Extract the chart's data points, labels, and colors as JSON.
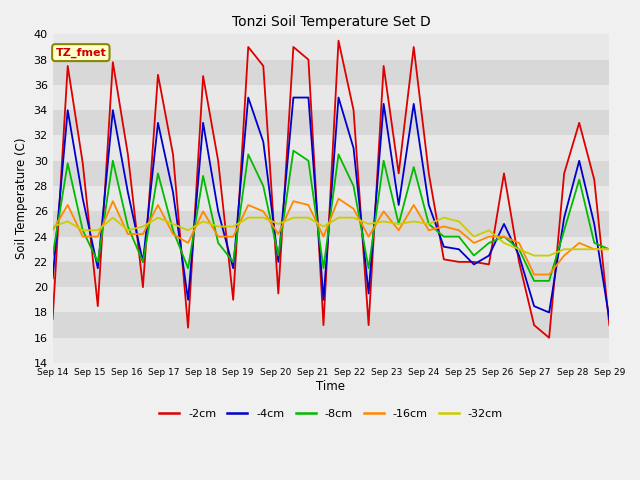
{
  "title": "Tonzi Soil Temperature Set D",
  "xlabel": "Time",
  "ylabel": "Soil Temperature (C)",
  "ylim": [
    14,
    40
  ],
  "yticks": [
    14,
    16,
    18,
    20,
    22,
    24,
    26,
    28,
    30,
    32,
    34,
    36,
    38,
    40
  ],
  "x_labels": [
    "Sep 14",
    "Sep 15",
    "Sep 16",
    "Sep 17",
    "Sep 18",
    "Sep 19",
    "Sep 20",
    "Sep 21",
    "Sep 22",
    "Sep 23",
    "Sep 24",
    "Sep 25",
    "Sep 26",
    "Sep 27",
    "Sep 28",
    "Sep 29"
  ],
  "annotation_text": "TZ_fmet",
  "colors": {
    "-2cm": "#dd0000",
    "-4cm": "#0000cc",
    "-8cm": "#00bb00",
    "-16cm": "#ff8800",
    "-32cm": "#cccc00"
  },
  "series": {
    "-2cm": [
      17.5,
      37.5,
      29.8,
      18.5,
      37.8,
      30.5,
      20.0,
      36.8,
      30.5,
      16.8,
      36.7,
      30.0,
      19.0,
      39.0,
      37.5,
      19.5,
      39.0,
      38.0,
      17.0,
      39.5,
      34.0,
      17.0,
      37.5,
      29.0,
      39.0,
      29.0,
      22.2,
      22.0,
      22.0,
      21.8,
      29.0,
      22.0,
      17.0,
      16.0,
      29.0,
      33.0,
      28.5,
      17.0
    ],
    "-4cm": [
      20.7,
      34.0,
      27.0,
      21.5,
      34.0,
      27.5,
      22.0,
      33.0,
      27.5,
      19.0,
      33.0,
      26.0,
      21.5,
      35.0,
      31.5,
      22.0,
      35.0,
      35.0,
      19.0,
      35.0,
      31.0,
      19.5,
      34.5,
      26.5,
      34.5,
      26.5,
      23.2,
      23.0,
      21.8,
      22.5,
      25.0,
      22.5,
      18.5,
      18.0,
      25.5,
      30.0,
      25.0,
      17.5
    ],
    "-8cm": [
      22.5,
      29.8,
      24.5,
      22.0,
      30.0,
      24.8,
      22.0,
      29.0,
      24.5,
      21.5,
      28.8,
      23.5,
      22.0,
      30.5,
      28.0,
      22.5,
      30.8,
      30.0,
      21.5,
      30.5,
      28.0,
      21.5,
      30.0,
      25.0,
      29.5,
      25.0,
      24.0,
      24.0,
      22.5,
      23.5,
      24.0,
      23.0,
      20.5,
      20.5,
      24.5,
      28.5,
      23.5,
      23.0
    ],
    "-16cm": [
      24.5,
      26.5,
      24.0,
      24.0,
      26.8,
      24.2,
      24.2,
      26.5,
      24.2,
      23.5,
      26.0,
      24.0,
      24.0,
      26.5,
      26.0,
      24.2,
      26.8,
      26.5,
      24.0,
      27.0,
      26.2,
      24.0,
      26.0,
      24.5,
      26.5,
      24.5,
      24.8,
      24.5,
      23.5,
      24.0,
      24.0,
      23.5,
      21.0,
      21.0,
      22.5,
      23.5,
      23.0,
      23.0
    ],
    "-32cm": [
      24.8,
      25.2,
      24.5,
      24.5,
      25.5,
      24.5,
      24.8,
      25.5,
      25.0,
      24.5,
      25.2,
      24.8,
      24.8,
      25.5,
      25.5,
      25.0,
      25.5,
      25.5,
      24.8,
      25.5,
      25.5,
      25.0,
      25.2,
      25.0,
      25.2,
      25.0,
      25.5,
      25.2,
      24.0,
      24.5,
      23.5,
      23.0,
      22.5,
      22.5,
      23.0,
      23.0,
      23.0,
      23.0
    ]
  },
  "figure_bg": "#f0f0f0",
  "plot_bg": "#e8e8e8",
  "grid_color": "#ffffff",
  "band_colors": [
    "#e8e8e8",
    "#d8d8d8"
  ]
}
